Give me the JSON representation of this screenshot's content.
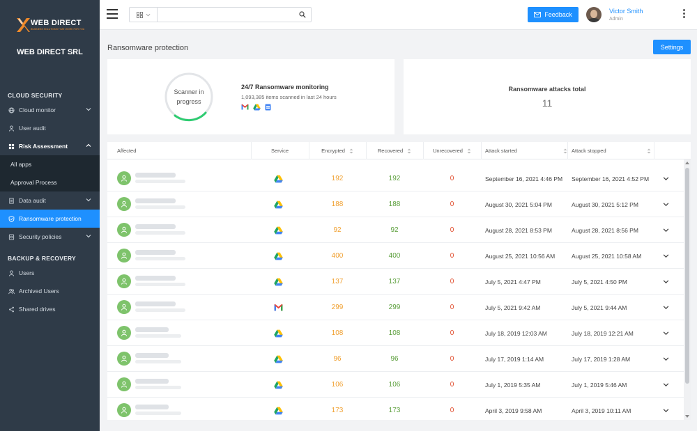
{
  "sidebar": {
    "brand": "WEB DIRECT",
    "brand_tagline": "BUSINESS SOLUTIONS THAT WORK FOR YOU",
    "company": "WEB DIRECT SRL",
    "sections": [
      {
        "title": "CLOUD SECURITY"
      },
      {
        "title": "BACKUP & RECOVERY"
      }
    ],
    "items": [
      {
        "label": "Cloud monitor"
      },
      {
        "label": "User audit"
      },
      {
        "label": "Risk Assessment"
      },
      {
        "label": "All apps"
      },
      {
        "label": "Approval Process"
      },
      {
        "label": "Data audit"
      },
      {
        "label": "Ransomware protection"
      },
      {
        "label": "Security policies"
      },
      {
        "label": "Users"
      },
      {
        "label": "Archived Users"
      },
      {
        "label": "Shared drives"
      }
    ]
  },
  "topbar": {
    "search_placeholder": "",
    "search_value": "",
    "feedback_label": "Feedback",
    "user_name": "Victor Smith",
    "user_role": "Admin"
  },
  "page": {
    "title": "Ransomware protection",
    "settings_label": "Settings"
  },
  "scanner": {
    "status_line1": "Scanner in",
    "status_line2": "progress",
    "monitor_title": "24/7 Ransomware monitoring",
    "monitor_sub": "1,093,385 items scanned in last 24 hours",
    "monitor_icons": [
      "gmail-icon",
      "google-drive-icon",
      "google-docs-icon"
    ]
  },
  "attacks": {
    "label": "Ransomware attacks total",
    "value": "11"
  },
  "table": {
    "columns": [
      "Affected",
      "Service",
      "Encrypted",
      "Recovered",
      "Unrecovered",
      "Attack started",
      "Attack stopped"
    ],
    "rows": [
      {
        "service": "google-drive",
        "encrypted": "192",
        "recovered": "192",
        "unrecovered": "0",
        "started": "September 16, 2021 4:46 PM",
        "stopped": "September 16, 2021 4:52 PM"
      },
      {
        "service": "google-drive",
        "encrypted": "188",
        "recovered": "188",
        "unrecovered": "0",
        "started": "August 30, 2021 5:04 PM",
        "stopped": "August 30, 2021 5:12 PM"
      },
      {
        "service": "google-drive",
        "encrypted": "92",
        "recovered": "92",
        "unrecovered": "0",
        "started": "August 28, 2021 8:53 PM",
        "stopped": "August 28, 2021 8:56 PM"
      },
      {
        "service": "google-drive",
        "encrypted": "400",
        "recovered": "400",
        "unrecovered": "0",
        "started": "August 25, 2021 10:56 AM",
        "stopped": "August 25, 2021 10:58 AM"
      },
      {
        "service": "google-drive",
        "encrypted": "137",
        "recovered": "137",
        "unrecovered": "0",
        "started": "July 5, 2021 4:47 PM",
        "stopped": "July 5, 2021 4:50 PM"
      },
      {
        "service": "gmail",
        "encrypted": "299",
        "recovered": "299",
        "unrecovered": "0",
        "started": "July 5, 2021 9:42 AM",
        "stopped": "July 5, 2021 9:44 AM"
      },
      {
        "service": "google-drive",
        "encrypted": "108",
        "recovered": "108",
        "unrecovered": "0",
        "started": "July 18, 2019 12:03 AM",
        "stopped": "July 18, 2019 12:21 AM"
      },
      {
        "service": "google-drive",
        "encrypted": "96",
        "recovered": "96",
        "unrecovered": "0",
        "started": "July 17, 2019 1:14 AM",
        "stopped": "July 17, 2019 1:28 AM"
      },
      {
        "service": "google-drive",
        "encrypted": "106",
        "recovered": "106",
        "unrecovered": "0",
        "started": "July 1, 2019 5:35 AM",
        "stopped": "July 1, 2019 5:46 AM"
      },
      {
        "service": "google-drive",
        "encrypted": "173",
        "recovered": "173",
        "unrecovered": "0",
        "started": "April 3, 2019 9:58 AM",
        "stopped": "April 3, 2019 10:11 AM"
      }
    ]
  },
  "colors": {
    "accent": "#1e90ff",
    "sidebar_bg": "#2f3b48",
    "encrypted": "#f0a030",
    "recovered": "#5a9e3a",
    "unrecovered": "#e04a2a",
    "progress": "#2ecc71"
  }
}
